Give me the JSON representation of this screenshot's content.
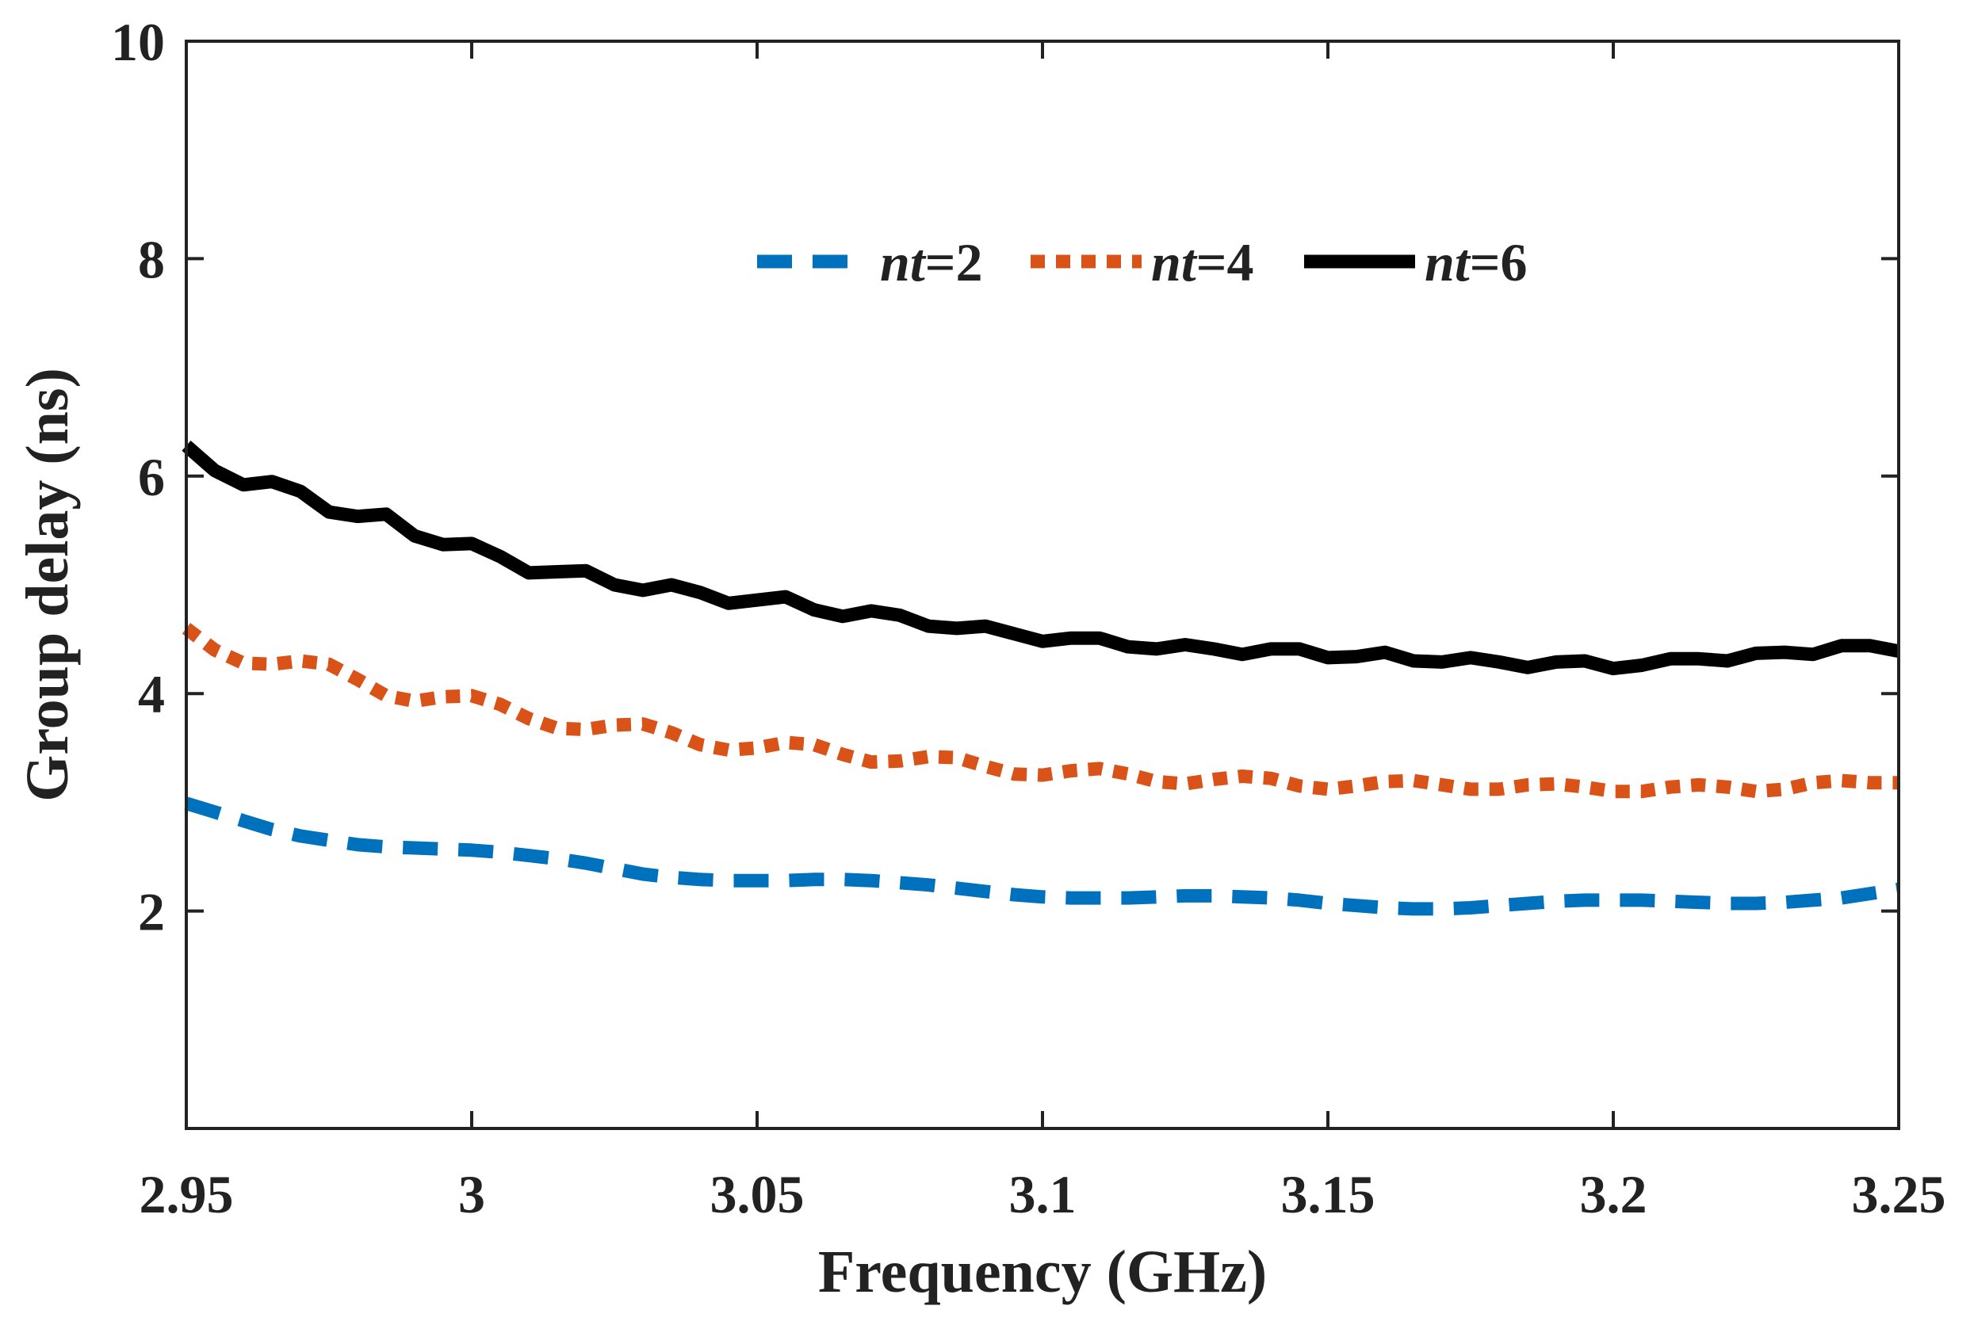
{
  "chart_data": {
    "type": "line",
    "title": "",
    "xlabel": "Frequency (GHz)",
    "ylabel": "Group delay (ns)",
    "xlim": [
      2.95,
      3.25
    ],
    "ylim": [
      0,
      10
    ],
    "xticks": [
      2.95,
      3.0,
      3.05,
      3.1,
      3.15,
      3.2,
      3.25
    ],
    "xtick_labels": [
      "2.95",
      "3",
      "3.05",
      "3.1",
      "3.15",
      "3.2",
      "3.25"
    ],
    "yticks": [
      2,
      4,
      6,
      8,
      10
    ],
    "ytick_labels": [
      "2",
      "4",
      "6",
      "8",
      "10"
    ],
    "grid": false,
    "legend_position": "top-center",
    "series": [
      {
        "name": "nt=2",
        "legend_var": "nt",
        "legend_value": "=2",
        "color": "#0072BD",
        "style": "dashed",
        "x": [
          2.95,
          2.955,
          2.96,
          2.965,
          2.97,
          2.975,
          2.98,
          2.985,
          2.99,
          2.995,
          3.0,
          3.005,
          3.01,
          3.015,
          3.02,
          3.025,
          3.03,
          3.035,
          3.04,
          3.045,
          3.05,
          3.055,
          3.06,
          3.065,
          3.07,
          3.075,
          3.08,
          3.085,
          3.09,
          3.095,
          3.1,
          3.105,
          3.11,
          3.115,
          3.12,
          3.125,
          3.13,
          3.135,
          3.14,
          3.145,
          3.15,
          3.155,
          3.16,
          3.165,
          3.17,
          3.175,
          3.18,
          3.185,
          3.19,
          3.195,
          3.2,
          3.205,
          3.21,
          3.215,
          3.22,
          3.225,
          3.23,
          3.235,
          3.24,
          3.245,
          3.25
        ],
        "y": [
          2.99,
          2.91,
          2.83,
          2.75,
          2.69,
          2.65,
          2.61,
          2.59,
          2.58,
          2.57,
          2.56,
          2.54,
          2.51,
          2.48,
          2.44,
          2.39,
          2.34,
          2.31,
          2.29,
          2.28,
          2.28,
          2.28,
          2.29,
          2.29,
          2.28,
          2.26,
          2.24,
          2.21,
          2.18,
          2.15,
          2.13,
          2.12,
          2.12,
          2.12,
          2.13,
          2.14,
          2.14,
          2.13,
          2.12,
          2.1,
          2.07,
          2.05,
          2.03,
          2.02,
          2.02,
          2.03,
          2.05,
          2.07,
          2.09,
          2.1,
          2.1,
          2.1,
          2.09,
          2.08,
          2.07,
          2.07,
          2.08,
          2.1,
          2.12,
          2.16,
          2.2
        ]
      },
      {
        "name": "nt=4",
        "legend_var": "nt",
        "legend_value": "=4",
        "color": "#D95319",
        "style": "dotted",
        "x": [
          2.95,
          2.955,
          2.96,
          2.965,
          2.97,
          2.975,
          2.98,
          2.985,
          2.99,
          2.995,
          3.0,
          3.005,
          3.01,
          3.015,
          3.02,
          3.025,
          3.03,
          3.035,
          3.04,
          3.045,
          3.05,
          3.055,
          3.06,
          3.065,
          3.07,
          3.075,
          3.08,
          3.085,
          3.09,
          3.095,
          3.1,
          3.105,
          3.11,
          3.115,
          3.12,
          3.125,
          3.13,
          3.135,
          3.14,
          3.145,
          3.15,
          3.155,
          3.16,
          3.165,
          3.17,
          3.175,
          3.18,
          3.185,
          3.19,
          3.195,
          3.2,
          3.205,
          3.21,
          3.215,
          3.22,
          3.225,
          3.23,
          3.235,
          3.24,
          3.245,
          3.25
        ],
        "y": [
          4.6,
          4.4,
          4.28,
          4.27,
          4.3,
          4.27,
          4.13,
          3.98,
          3.93,
          3.97,
          3.98,
          3.9,
          3.77,
          3.68,
          3.67,
          3.71,
          3.72,
          3.64,
          3.53,
          3.48,
          3.5,
          3.55,
          3.53,
          3.44,
          3.37,
          3.38,
          3.42,
          3.41,
          3.33,
          3.26,
          3.25,
          3.29,
          3.31,
          3.26,
          3.19,
          3.17,
          3.21,
          3.24,
          3.22,
          3.15,
          3.12,
          3.15,
          3.19,
          3.2,
          3.16,
          3.12,
          3.12,
          3.16,
          3.17,
          3.14,
          3.1,
          3.1,
          3.14,
          3.16,
          3.14,
          3.1,
          3.12,
          3.18,
          3.2,
          3.18,
          3.18
        ]
      },
      {
        "name": "nt=6",
        "legend_var": "nt",
        "legend_value": "=6",
        "color": "#000000",
        "style": "solid",
        "x": [
          2.95,
          2.955,
          2.96,
          2.965,
          2.97,
          2.975,
          2.98,
          2.985,
          2.99,
          2.995,
          3.0,
          3.005,
          3.01,
          3.015,
          3.02,
          3.025,
          3.03,
          3.035,
          3.04,
          3.045,
          3.05,
          3.055,
          3.06,
          3.065,
          3.07,
          3.075,
          3.08,
          3.085,
          3.09,
          3.095,
          3.1,
          3.105,
          3.11,
          3.115,
          3.12,
          3.125,
          3.13,
          3.135,
          3.14,
          3.145,
          3.15,
          3.155,
          3.16,
          3.165,
          3.17,
          3.175,
          3.18,
          3.185,
          3.19,
          3.195,
          3.2,
          3.205,
          3.21,
          3.215,
          3.22,
          3.225,
          3.23,
          3.235,
          3.24,
          3.245,
          3.25
        ],
        "y": [
          6.28,
          6.05,
          5.92,
          5.95,
          5.86,
          5.67,
          5.63,
          5.65,
          5.45,
          5.37,
          5.38,
          5.26,
          5.11,
          5.12,
          5.13,
          5.0,
          4.95,
          5.0,
          4.93,
          4.83,
          4.86,
          4.89,
          4.77,
          4.71,
          4.76,
          4.72,
          4.62,
          4.6,
          4.62,
          4.55,
          4.48,
          4.51,
          4.51,
          4.43,
          4.41,
          4.45,
          4.41,
          4.36,
          4.41,
          4.41,
          4.33,
          4.34,
          4.38,
          4.3,
          4.29,
          4.33,
          4.29,
          4.24,
          4.29,
          4.3,
          4.23,
          4.26,
          4.32,
          4.32,
          4.3,
          4.37,
          4.38,
          4.36,
          4.44,
          4.44,
          4.39
        ]
      }
    ]
  }
}
